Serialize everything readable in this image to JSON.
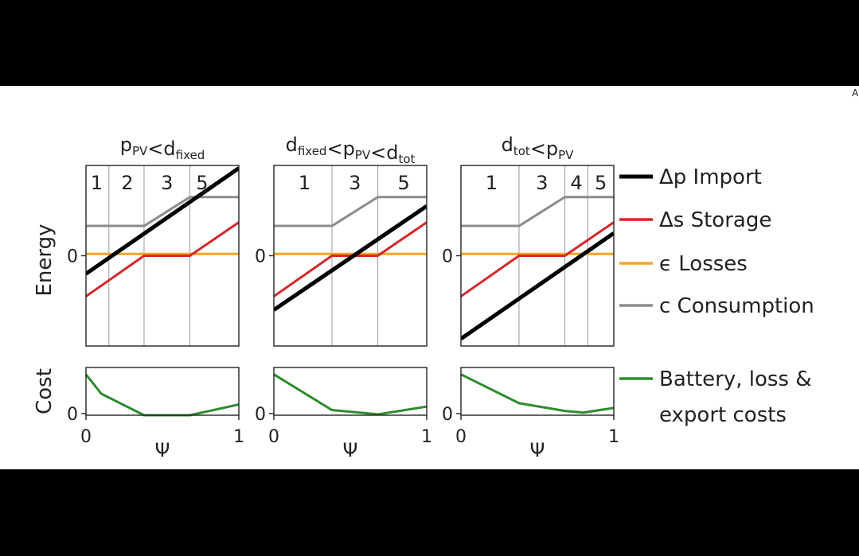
{
  "colors": {
    "import": "#000000",
    "storage": "#d62728",
    "losses": "#f5a623",
    "consumption": "#8c8c8c",
    "cost": "#2e8b2e",
    "background": "#ffffff",
    "letterbox": "#000000"
  },
  "corner_mark": "A",
  "axis": {
    "energy_label": "Energy",
    "cost_label": "Cost",
    "zero_label": "0",
    "x_label": "Ψ",
    "x_ticks": [
      "0",
      "1"
    ]
  },
  "legend": [
    {
      "key": "import",
      "symbol": "Δp",
      "text": "Import"
    },
    {
      "key": "storage",
      "symbol": "Δs",
      "text": "Storage"
    },
    {
      "key": "losses",
      "symbol": "ϵ",
      "text": "Losses"
    },
    {
      "key": "consumption",
      "symbol": "c",
      "text": "Consumption"
    },
    {
      "key": "cost",
      "symbol": "",
      "text": "Battery, loss &",
      "text2": "export costs"
    }
  ],
  "chart_data": [
    {
      "type": "line",
      "title_parts": [
        {
          "t": "p",
          "sub": "PV"
        },
        {
          "t": "<"
        },
        {
          "t": "d",
          "sub": "fixed"
        }
      ],
      "x_range": [
        0,
        1
      ],
      "y_range": [
        -1,
        1
      ],
      "region_boundaries": [
        0.15,
        0.38,
        0.68,
        1.0
      ],
      "region_labels": [
        {
          "label": "1",
          "x": 0.07
        },
        {
          "label": "2",
          "x": 0.27
        },
        {
          "label": "3",
          "x": 0.53
        },
        {
          "label": "5",
          "x": 0.76
        }
      ],
      "series": [
        {
          "key": "consumption",
          "x": [
            0,
            0.38,
            0.68,
            1
          ],
          "y": [
            0.33,
            0.33,
            0.65,
            0.65
          ]
        },
        {
          "key": "losses",
          "x": [
            0,
            1
          ],
          "y": [
            0.02,
            0.02
          ]
        },
        {
          "key": "storage",
          "x": [
            0,
            0.38,
            0.68,
            1
          ],
          "y": [
            -0.45,
            0,
            0,
            0.37
          ]
        },
        {
          "key": "import",
          "x": [
            0,
            1
          ],
          "y": [
            -0.2,
            0.97
          ]
        }
      ],
      "cost": {
        "x": [
          0,
          0.1,
          0.38,
          0.68,
          1
        ],
        "y": [
          0.95,
          0.5,
          0,
          0,
          0.25
        ]
      }
    },
    {
      "type": "line",
      "title_parts": [
        {
          "t": "d",
          "sub": "fixed"
        },
        {
          "t": "<"
        },
        {
          "t": "p",
          "sub": "PV"
        },
        {
          "t": "<"
        },
        {
          "t": "d",
          "sub": "tot"
        }
      ],
      "x_range": [
        0,
        1
      ],
      "y_range": [
        -1,
        1
      ],
      "region_boundaries": [
        0.38,
        0.68,
        1.0
      ],
      "region_labels": [
        {
          "label": "1",
          "x": 0.2
        },
        {
          "label": "3",
          "x": 0.53
        },
        {
          "label": "5",
          "x": 0.85
        }
      ],
      "series": [
        {
          "key": "consumption",
          "x": [
            0,
            0.38,
            0.68,
            1
          ],
          "y": [
            0.33,
            0.33,
            0.65,
            0.65
          ]
        },
        {
          "key": "losses",
          "x": [
            0,
            1
          ],
          "y": [
            0.02,
            0.02
          ]
        },
        {
          "key": "storage",
          "x": [
            0,
            0.38,
            0.68,
            1
          ],
          "y": [
            -0.45,
            0,
            0,
            0.37
          ]
        },
        {
          "key": "import",
          "x": [
            0,
            1
          ],
          "y": [
            -0.6,
            0.55
          ]
        }
      ],
      "cost": {
        "x": [
          0,
          0.38,
          0.68,
          1
        ],
        "y": [
          0.95,
          0.12,
          0.02,
          0.2
        ]
      }
    },
    {
      "type": "line",
      "title_parts": [
        {
          "t": "d",
          "sub": "tot"
        },
        {
          "t": "<"
        },
        {
          "t": "p",
          "sub": "PV"
        }
      ],
      "x_range": [
        0,
        1
      ],
      "y_range": [
        -1,
        1
      ],
      "region_boundaries": [
        0.38,
        0.68,
        0.83,
        1.0
      ],
      "region_labels": [
        {
          "label": "1",
          "x": 0.2
        },
        {
          "label": "3",
          "x": 0.53
        },
        {
          "label": "4",
          "x": 0.755
        },
        {
          "label": "5",
          "x": 0.915
        }
      ],
      "series": [
        {
          "key": "consumption",
          "x": [
            0,
            0.38,
            0.68,
            1
          ],
          "y": [
            0.33,
            0.33,
            0.65,
            0.65
          ]
        },
        {
          "key": "losses",
          "x": [
            0,
            1
          ],
          "y": [
            0.02,
            0.02
          ]
        },
        {
          "key": "storage",
          "x": [
            0,
            0.38,
            0.68,
            1
          ],
          "y": [
            -0.45,
            0,
            0,
            0.37
          ]
        },
        {
          "key": "import",
          "x": [
            0,
            1
          ],
          "y": [
            -0.92,
            0.25
          ]
        }
      ],
      "cost": {
        "x": [
          0,
          0.38,
          0.68,
          0.8,
          1
        ],
        "y": [
          0.95,
          0.28,
          0.1,
          0.06,
          0.17
        ]
      }
    }
  ]
}
